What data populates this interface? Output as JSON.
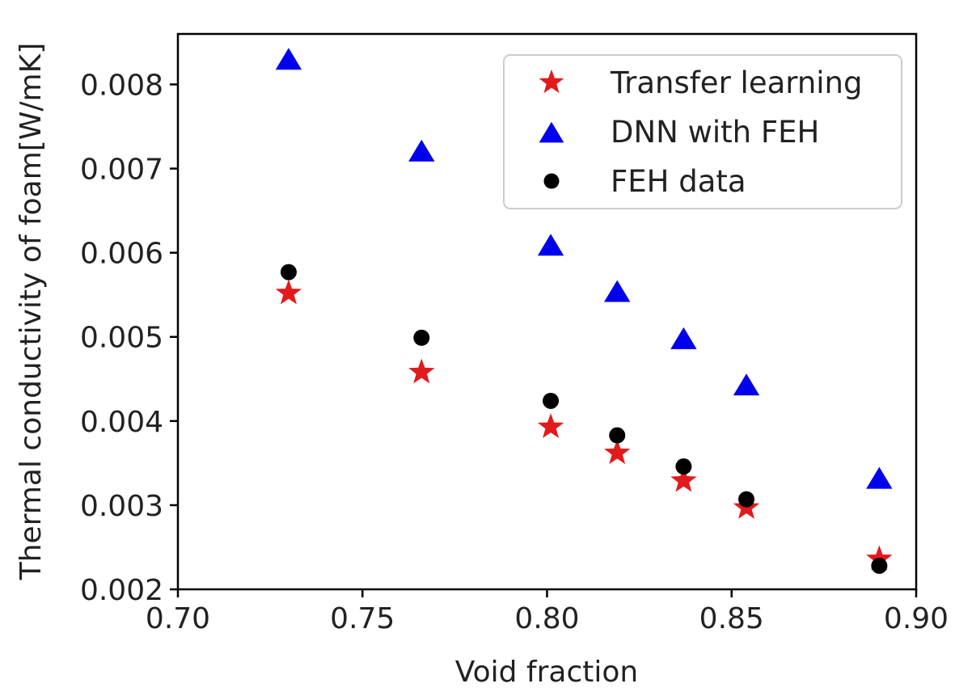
{
  "chart_data": {
    "type": "scatter",
    "xlabel": "Void fraction",
    "ylabel": "Thermal conductivity of foam[W/mK]",
    "xlim": [
      0.7,
      0.9
    ],
    "ylim": [
      0.002,
      0.0086
    ],
    "xticks": [
      0.7,
      0.75,
      0.8,
      0.85,
      0.9
    ],
    "xtick_labels": [
      "0.70",
      "0.75",
      "0.80",
      "0.85",
      "0.90"
    ],
    "yticks": [
      0.002,
      0.003,
      0.004,
      0.005,
      0.006,
      0.007,
      0.008
    ],
    "ytick_labels": [
      "0.002",
      "0.003",
      "0.004",
      "0.005",
      "0.006",
      "0.007",
      "0.008"
    ],
    "grid": false,
    "legend_position": "top-right",
    "series": [
      {
        "name": "Transfer learning",
        "marker": "star",
        "color": "#e31a1c",
        "x": [
          0.73,
          0.766,
          0.801,
          0.819,
          0.837,
          0.854,
          0.89
        ],
        "y": [
          0.00552,
          0.00458,
          0.00393,
          0.00362,
          0.00329,
          0.00297,
          0.00236
        ]
      },
      {
        "name": "DNN with FEH",
        "marker": "triangle",
        "color": "#0000ee",
        "x": [
          0.73,
          0.766,
          0.801,
          0.819,
          0.837,
          0.854,
          0.89
        ],
        "y": [
          0.00829,
          0.0072,
          0.00608,
          0.00553,
          0.00497,
          0.00442,
          0.00331
        ]
      },
      {
        "name": "FEH data",
        "marker": "circle",
        "color": "#000000",
        "x": [
          0.73,
          0.766,
          0.801,
          0.819,
          0.837,
          0.854,
          0.89
        ],
        "y": [
          0.00577,
          0.00499,
          0.00424,
          0.00383,
          0.00346,
          0.00307,
          0.00228
        ]
      }
    ]
  }
}
